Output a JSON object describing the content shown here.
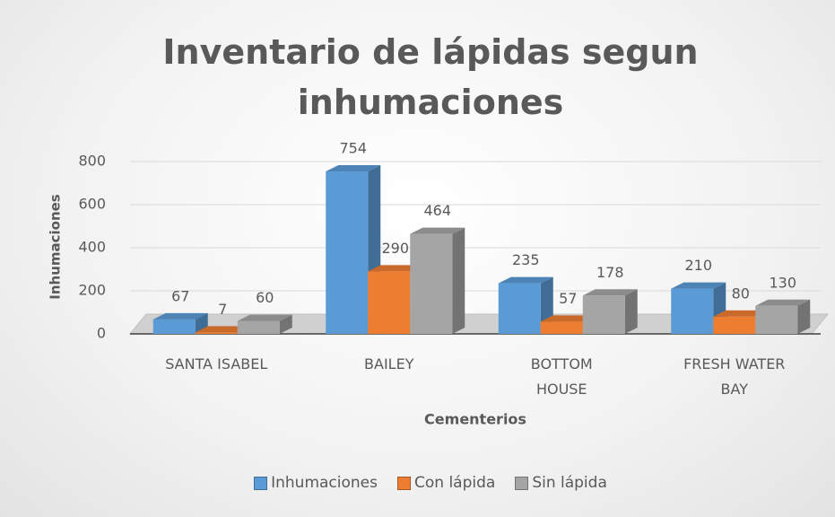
{
  "chart_data": {
    "type": "bar3d",
    "title": "Inventario de lápidas segun inhumaciones",
    "x_label": "Cementerios",
    "y_label": "Inhumaciones",
    "categories": [
      "SANTA ISABEL",
      "BAILEY",
      "BOTTOM HOUSE",
      "FRESH WATER BAY"
    ],
    "series": [
      {
        "name": "Inhumaciones",
        "color": "#5b9bd5",
        "values": [
          67,
          754,
          235,
          210
        ]
      },
      {
        "name": "Con lápida",
        "color": "#ed7d31",
        "values": [
          7,
          290,
          57,
          80
        ]
      },
      {
        "name": "Sin lápida",
        "color": "#a5a5a5",
        "values": [
          60,
          464,
          178,
          130
        ]
      }
    ],
    "ylim": [
      0,
      800
    ],
    "yticks": [
      0,
      200,
      400,
      600,
      800
    ],
    "grid": true,
    "legend": "bottom"
  }
}
